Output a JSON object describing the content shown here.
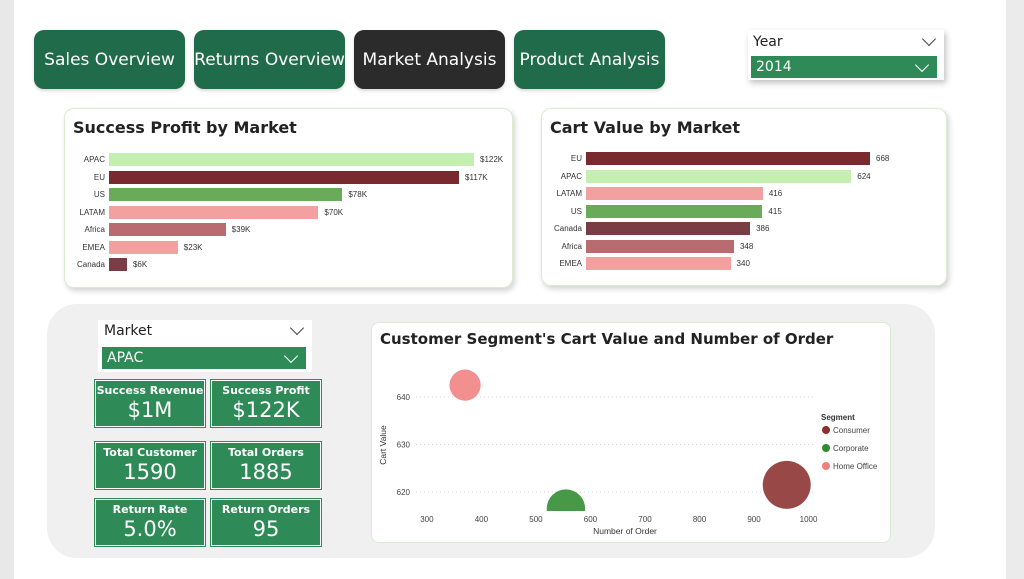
{
  "tabs": [
    {
      "label": "Sales Overview",
      "active": false
    },
    {
      "label": "Returns Overview",
      "active": false
    },
    {
      "label": "Market Analysis",
      "active": true
    },
    {
      "label": "Product Analysis",
      "active": false
    }
  ],
  "year_filter": {
    "header": "Year",
    "value": "2014"
  },
  "market_filter": {
    "header": "Market",
    "value": "APAC"
  },
  "colors": {
    "primary_green": "#1f6b4a",
    "active_tab": "#2b2b2b",
    "kpi_green": "#2e8b57"
  },
  "kpis": [
    {
      "label": "Success Revenue",
      "value": "$1M"
    },
    {
      "label": "Success Profit",
      "value": "$122K"
    },
    {
      "label": "Total Customer",
      "value": "1590"
    },
    {
      "label": "Total Orders",
      "value": "1885"
    },
    {
      "label": "Return Rate",
      "value": "5.0%"
    },
    {
      "label": "Return Orders",
      "value": "95"
    }
  ],
  "chart_data": [
    {
      "type": "bar",
      "orientation": "horizontal",
      "title": "Success Profit by Market",
      "categories": [
        "APAC",
        "EU",
        "US",
        "LATAM",
        "Africa",
        "EMEA",
        "Canada"
      ],
      "values": [
        122000,
        117000,
        78000,
        70000,
        39000,
        23000,
        6000
      ],
      "data_labels": [
        "$122K",
        "$117K",
        "$78K",
        "$70K",
        "$39K",
        "$23K",
        "$6K"
      ],
      "bar_colors": [
        "#c5efb0",
        "#7a2a2e",
        "#6aab5a",
        "#f2a0a0",
        "#b86c70",
        "#f2a0a0",
        "#7b3d45"
      ]
    },
    {
      "type": "bar",
      "orientation": "horizontal",
      "title": "Cart Value by Market",
      "categories": [
        "EU",
        "APAC",
        "LATAM",
        "US",
        "Canada",
        "Africa",
        "EMEA"
      ],
      "values": [
        668,
        624,
        416,
        415,
        386,
        348,
        340
      ],
      "data_labels": [
        "668",
        "624",
        "416",
        "415",
        "386",
        "348",
        "340"
      ],
      "bar_colors": [
        "#7a2a2e",
        "#c5efb0",
        "#f2a0a0",
        "#6aab5a",
        "#7b3d45",
        "#b86c70",
        "#f2a0a0"
      ]
    },
    {
      "type": "scatter",
      "title": "Customer Segment's Cart Value and Number of Order",
      "xlabel": "Number of Order",
      "ylabel": "Cart Value",
      "xlim": [
        280,
        1010
      ],
      "ylim": [
        616,
        648
      ],
      "xticks": [
        "300",
        "400",
        "500",
        "600",
        "700",
        "800",
        "900",
        "1000"
      ],
      "yticks": [
        "620",
        "630",
        "640"
      ],
      "grid": true,
      "legend_title": "Segment",
      "legend_position": "right",
      "series": [
        {
          "name": "Consumer",
          "color": "#8b2f2f",
          "x": 960,
          "y": 621.5,
          "size": 1.0
        },
        {
          "name": "Corporate",
          "color": "#2e8b2e",
          "x": 555,
          "y": 616.5,
          "size": 0.8
        },
        {
          "name": "Home Office",
          "color": "#f08080",
          "x": 370,
          "y": 642.5,
          "size": 0.65
        }
      ]
    }
  ]
}
